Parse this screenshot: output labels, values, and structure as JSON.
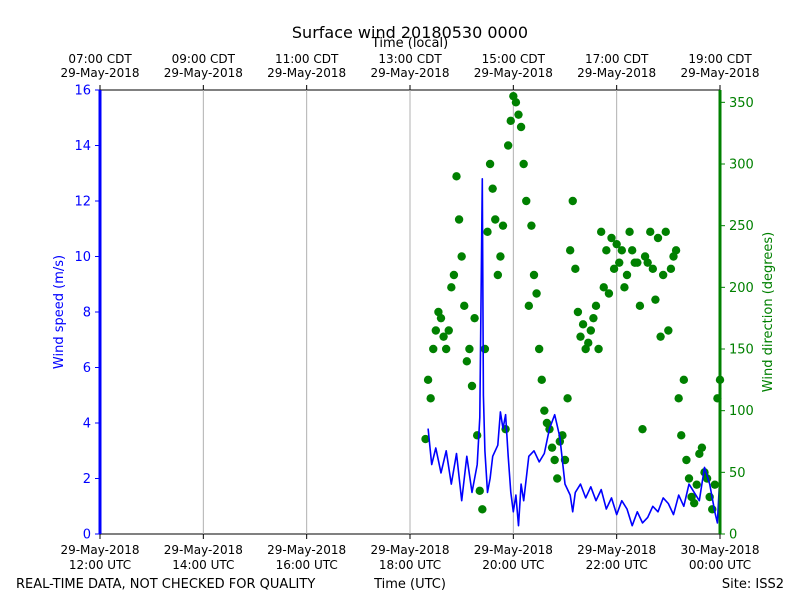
{
  "chart_data": {
    "type": "line+scatter",
    "title": "Surface wind 20180530 0000",
    "top_axis_label": "Time (local)",
    "bottom_axis_label": "Time (UTC)",
    "footer_left": "REAL-TIME DATA, NOT CHECKED FOR QUALITY",
    "footer_right": "Site: ISS2",
    "x_range_hours_utc": [
      12,
      24
    ],
    "x_ticks_utc": [
      {
        "h": 12,
        "date": "29-May-2018",
        "time": "12:00 UTC"
      },
      {
        "h": 14,
        "date": "29-May-2018",
        "time": "14:00 UTC"
      },
      {
        "h": 16,
        "date": "29-May-2018",
        "time": "16:00 UTC"
      },
      {
        "h": 18,
        "date": "29-May-2018",
        "time": "18:00 UTC"
      },
      {
        "h": 20,
        "date": "29-May-2018",
        "time": "20:00 UTC"
      },
      {
        "h": 22,
        "date": "29-May-2018",
        "time": "22:00 UTC"
      },
      {
        "h": 24,
        "date": "30-May-2018",
        "time": "00:00 UTC"
      }
    ],
    "x_ticks_local": [
      {
        "h": 12,
        "time": "07:00 CDT",
        "date": "29-May-2018"
      },
      {
        "h": 14,
        "time": "09:00 CDT",
        "date": "29-May-2018"
      },
      {
        "h": 16,
        "time": "11:00 CDT",
        "date": "29-May-2018"
      },
      {
        "h": 18,
        "time": "13:00 CDT",
        "date": "29-May-2018"
      },
      {
        "h": 20,
        "time": "15:00 CDT",
        "date": "29-May-2018"
      },
      {
        "h": 22,
        "time": "17:00 CDT",
        "date": "29-May-2018"
      },
      {
        "h": 24,
        "time": "19:00 CDT",
        "date": "29-May-2018"
      }
    ],
    "left_axis": {
      "label": "Wind speed (m/s)",
      "ylim": [
        0,
        16
      ],
      "ticks": [
        0,
        2,
        4,
        6,
        8,
        10,
        12,
        14,
        16
      ],
      "color": "#0000ff"
    },
    "right_axis": {
      "label": "Wind direction (degrees)",
      "ylim": [
        0,
        360
      ],
      "ticks": [
        0,
        50,
        100,
        150,
        200,
        250,
        300,
        350
      ],
      "color": "#008000"
    },
    "series": [
      {
        "name": "Wind speed",
        "axis": "left",
        "kind": "line",
        "color": "#0000ff",
        "x": [
          18.35,
          18.42,
          18.5,
          18.6,
          18.7,
          18.8,
          18.9,
          19.0,
          19.1,
          19.2,
          19.3,
          19.35,
          19.4,
          19.42,
          19.45,
          19.5,
          19.55,
          19.6,
          19.7,
          19.75,
          19.8,
          19.85,
          19.9,
          19.95,
          20.0,
          20.05,
          20.1,
          20.15,
          20.2,
          20.3,
          20.4,
          20.5,
          20.6,
          20.7,
          20.8,
          20.9,
          21.0,
          21.1,
          21.15,
          21.2,
          21.3,
          21.4,
          21.5,
          21.6,
          21.7,
          21.8,
          21.9,
          22.0,
          22.1,
          22.2,
          22.3,
          22.4,
          22.5,
          22.6,
          22.7,
          22.8,
          22.9,
          23.0,
          23.1,
          23.2,
          23.3,
          23.4,
          23.5,
          23.6,
          23.7,
          23.8,
          23.9,
          23.95,
          24.0
        ],
        "y": [
          3.8,
          2.5,
          3.1,
          2.2,
          3.0,
          1.8,
          2.9,
          1.2,
          2.8,
          1.5,
          2.5,
          4.2,
          12.8,
          5.0,
          3.0,
          1.5,
          2.0,
          2.8,
          3.2,
          4.4,
          3.8,
          4.3,
          2.8,
          1.5,
          0.8,
          1.4,
          0.3,
          1.8,
          1.2,
          2.8,
          3.0,
          2.6,
          2.9,
          3.8,
          4.3,
          3.5,
          1.8,
          1.4,
          0.8,
          1.5,
          1.8,
          1.3,
          1.7,
          1.2,
          1.6,
          0.9,
          1.3,
          0.7,
          1.2,
          0.9,
          0.3,
          0.8,
          0.4,
          0.6,
          1.0,
          0.8,
          1.3,
          1.1,
          0.7,
          1.4,
          1.0,
          1.8,
          1.5,
          1.2,
          2.4,
          1.8,
          0.8,
          0.4,
          2.2
        ]
      },
      {
        "name": "Wind direction",
        "axis": "right",
        "kind": "scatter",
        "color": "#008000",
        "x": [
          18.3,
          18.35,
          18.4,
          18.45,
          18.5,
          18.55,
          18.6,
          18.65,
          18.7,
          18.75,
          18.8,
          18.85,
          18.9,
          18.95,
          19.0,
          19.05,
          19.1,
          19.15,
          19.2,
          19.25,
          19.3,
          19.35,
          19.4,
          19.45,
          19.5,
          19.55,
          19.6,
          19.65,
          19.7,
          19.75,
          19.8,
          19.85,
          19.9,
          19.95,
          20.0,
          20.05,
          20.1,
          20.15,
          20.2,
          20.25,
          20.3,
          20.35,
          20.4,
          20.45,
          20.5,
          20.55,
          20.6,
          20.65,
          20.7,
          20.75,
          20.8,
          20.85,
          20.9,
          20.95,
          21.0,
          21.05,
          21.1,
          21.15,
          21.2,
          21.25,
          21.3,
          21.35,
          21.4,
          21.45,
          21.5,
          21.55,
          21.6,
          21.65,
          21.7,
          21.75,
          21.8,
          21.85,
          21.9,
          21.95,
          22.0,
          22.05,
          22.1,
          22.15,
          22.2,
          22.25,
          22.3,
          22.35,
          22.4,
          22.45,
          22.5,
          22.55,
          22.6,
          22.65,
          22.7,
          22.75,
          22.8,
          22.85,
          22.9,
          22.95,
          23.0,
          23.05,
          23.1,
          23.15,
          23.2,
          23.25,
          23.3,
          23.35,
          23.4,
          23.45,
          23.5,
          23.55,
          23.6,
          23.65,
          23.7,
          23.75,
          23.8,
          23.85,
          23.9,
          23.95,
          24.0
        ],
        "y": [
          77,
          125,
          110,
          150,
          165,
          180,
          175,
          160,
          150,
          165,
          200,
          210,
          290,
          255,
          225,
          185,
          140,
          150,
          120,
          175,
          80,
          35,
          20,
          150,
          245,
          300,
          280,
          255,
          210,
          225,
          250,
          85,
          315,
          335,
          355,
          350,
          340,
          330,
          300,
          270,
          185,
          250,
          210,
          195,
          150,
          125,
          100,
          90,
          85,
          70,
          60,
          45,
          75,
          80,
          60,
          110,
          230,
          270,
          215,
          180,
          160,
          170,
          150,
          155,
          165,
          175,
          185,
          150,
          245,
          200,
          230,
          195,
          240,
          215,
          235,
          220,
          230,
          200,
          210,
          245,
          230,
          220,
          220,
          185,
          85,
          225,
          220,
          245,
          215,
          190,
          240,
          160,
          210,
          245,
          165,
          215,
          225,
          230,
          110,
          80,
          125,
          60,
          45,
          30,
          25,
          40,
          65,
          70,
          50,
          45,
          30,
          20,
          40,
          110,
          125
        ]
      }
    ]
  }
}
